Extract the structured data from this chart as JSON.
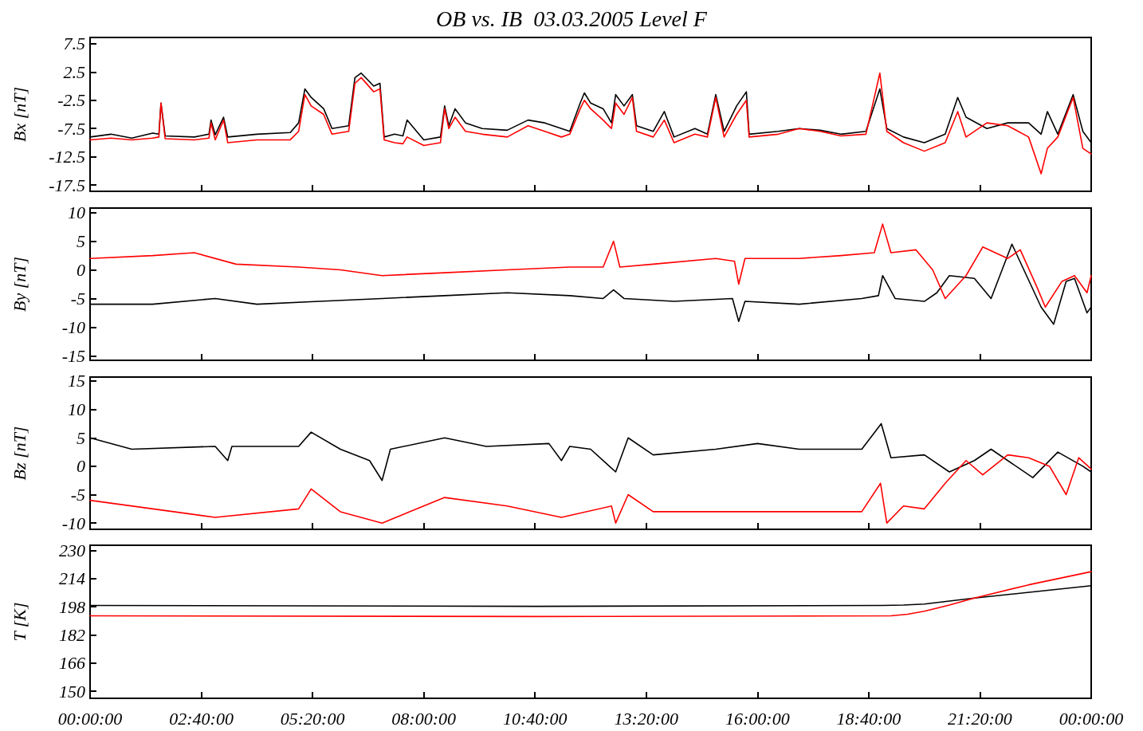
{
  "chart_data": [
    {
      "type": "line",
      "title": "OB vs. IB  03.03.2005 Level F",
      "ylabel": "Bx [nT]",
      "xlim": [
        "2005-03-03T00:00",
        "2005-03-04T00:00"
      ],
      "xticks": [
        {
          "value": "2005-03-03T00:00",
          "label": null
        },
        {
          "value": "2005-03-03T02:40",
          "label": null
        },
        {
          "value": "2005-03-03T05:20",
          "label": null
        },
        {
          "value": "2005-03-03T08:00",
          "label": null
        },
        {
          "value": "2005-03-03T10:40",
          "label": null
        },
        {
          "value": "2005-03-03T13:20",
          "label": null
        },
        {
          "value": "2005-03-03T16:00",
          "label": null
        },
        {
          "value": "2005-03-03T18:40",
          "label": null
        },
        {
          "value": "2005-03-03T21:20",
          "label": null
        },
        {
          "value": "2005-03-04T00:00",
          "label": null
        }
      ],
      "ylim": [
        -18.6,
        8.6
      ],
      "yticks": [
        -17.5,
        -12.5,
        -7.5,
        -2.5,
        2.5,
        7.5
      ],
      "tick_labels": "y",
      "grid": false,
      "marker": "none",
      "line_style": "solid",
      "x": [
        "2005-03-03T00:00",
        "2005-03-03T00:30",
        "2005-03-03T01:00",
        "2005-03-03T01:30",
        "2005-03-03T01:39",
        "2005-03-03T01:42",
        "2005-03-03T01:48",
        "2005-03-03T02:30",
        "2005-03-03T02:51",
        "2005-03-03T02:54",
        "2005-03-03T03:00",
        "2005-03-03T03:12",
        "2005-03-03T03:18",
        "2005-03-03T04:00",
        "2005-03-03T04:48",
        "2005-03-03T05:00",
        "2005-03-03T05:09",
        "2005-03-03T05:18",
        "2005-03-03T05:36",
        "2005-03-03T05:48",
        "2005-03-03T06:12",
        "2005-03-03T06:21",
        "2005-03-03T06:30",
        "2005-03-03T06:48",
        "2005-03-03T06:57",
        "2005-03-03T07:03",
        "2005-03-03T07:18",
        "2005-03-03T07:30",
        "2005-03-03T07:36",
        "2005-03-03T08:00",
        "2005-03-03T08:24",
        "2005-03-03T08:30",
        "2005-03-03T08:36",
        "2005-03-03T08:45",
        "2005-03-03T09:00",
        "2005-03-03T09:24",
        "2005-03-03T10:00",
        "2005-03-03T10:30",
        "2005-03-03T10:54",
        "2005-03-03T11:18",
        "2005-03-03T11:30",
        "2005-03-03T11:45",
        "2005-03-03T11:51",
        "2005-03-03T12:00",
        "2005-03-03T12:18",
        "2005-03-03T12:30",
        "2005-03-03T12:36",
        "2005-03-03T12:48",
        "2005-03-03T13:00",
        "2005-03-03T13:06",
        "2005-03-03T13:30",
        "2005-03-03T13:46",
        "2005-03-03T14:00",
        "2005-03-03T14:30",
        "2005-03-03T14:48",
        "2005-03-03T15:00",
        "2005-03-03T15:12",
        "2005-03-03T15:30",
        "2005-03-03T15:44",
        "2005-03-03T15:48",
        "2005-03-03T16:30",
        "2005-03-03T17:00",
        "2005-03-03T17:30",
        "2005-03-03T18:00",
        "2005-03-03T18:36",
        "2005-03-03T18:56",
        "2005-03-03T19:06",
        "2005-03-03T19:30",
        "2005-03-03T20:00",
        "2005-03-03T20:30",
        "2005-03-03T20:48",
        "2005-03-03T21:00",
        "2005-03-03T21:30",
        "2005-03-03T22:00",
        "2005-03-03T22:30",
        "2005-03-03T22:48",
        "2005-03-03T22:57",
        "2005-03-03T23:12",
        "2005-03-03T23:34",
        "2005-03-03T23:48",
        "2005-03-04T00:00"
      ],
      "series": [
        {
          "color": "#000000",
          "values": [
            -9,
            -8.5,
            -9.2,
            -8.3,
            -8.5,
            -3,
            -8.8,
            -9,
            -8.5,
            -6,
            -8.6,
            -5.5,
            -9,
            -8.5,
            -8.2,
            -6.5,
            -0.5,
            -2,
            -4,
            -7.5,
            -7,
            1.5,
            2.3,
            0,
            0.5,
            -9,
            -8.5,
            -8.8,
            -6,
            -9.5,
            -9,
            -3.5,
            -7,
            -4,
            -6.5,
            -7.5,
            -7.8,
            -6,
            -6.5,
            -7.5,
            -8,
            -3,
            -1.2,
            -3,
            -4,
            -6.5,
            -1.5,
            -3.5,
            -1.5,
            -7,
            -8,
            -4.5,
            -9,
            -7.5,
            -8.5,
            -1.5,
            -8,
            -3.5,
            -1,
            -8.5,
            -8,
            -7.5,
            -7.8,
            -8.5,
            -8,
            -0.5,
            -7.5,
            -9,
            -10,
            -8.5,
            -2,
            -5.5,
            -7.5,
            -6.5,
            -6.5,
            -8.5,
            -4.5,
            -8.5,
            -1.5,
            -8,
            -10
          ]
        },
        {
          "color": "#ff0000",
          "values": [
            -9.5,
            -9.2,
            -9.5,
            -9.2,
            -9,
            -3,
            -9.3,
            -9.5,
            -9.2,
            -6.5,
            -9.5,
            -6,
            -10,
            -9.5,
            -9.5,
            -8,
            -1.5,
            -3.5,
            -5,
            -8.5,
            -8,
            0.5,
            1.5,
            -1,
            -0.5,
            -9.5,
            -10,
            -10.2,
            -9,
            -10.5,
            -10,
            -4,
            -7.5,
            -5.5,
            -8,
            -8.5,
            -9,
            -7,
            -8,
            -9,
            -8.5,
            -4,
            -2.5,
            -4,
            -6,
            -7.5,
            -3,
            -5,
            -2,
            -8,
            -9,
            -6,
            -10,
            -8.5,
            -9,
            -2,
            -9,
            -5,
            -2.5,
            -9,
            -8.5,
            -7.5,
            -8,
            -8.8,
            -8.5,
            2.3,
            -8,
            -10,
            -11.5,
            -10,
            -4.5,
            -9,
            -6.5,
            -7,
            -9,
            -15.5,
            -11,
            -9,
            -2,
            -11,
            -12
          ]
        }
      ]
    },
    {
      "type": "line",
      "ylabel": "By [nT]",
      "xlim": [
        "2005-03-03T00:00",
        "2005-03-04T00:00"
      ],
      "xticks": [
        {
          "value": "2005-03-03T00:00",
          "label": null
        },
        {
          "value": "2005-03-03T02:40",
          "label": null
        },
        {
          "value": "2005-03-03T05:20",
          "label": null
        },
        {
          "value": "2005-03-03T08:00",
          "label": null
        },
        {
          "value": "2005-03-03T10:40",
          "label": null
        },
        {
          "value": "2005-03-03T13:20",
          "label": null
        },
        {
          "value": "2005-03-03T16:00",
          "label": null
        },
        {
          "value": "2005-03-03T18:40",
          "label": null
        },
        {
          "value": "2005-03-03T21:20",
          "label": null
        },
        {
          "value": "2005-03-04T00:00",
          "label": null
        }
      ],
      "ylim": [
        -15.8,
        10.8
      ],
      "yticks": [
        -15,
        -10,
        -5,
        0,
        5,
        10
      ],
      "tick_labels": "y",
      "grid": false,
      "marker": "none",
      "line_style": "solid",
      "series": [
        {
          "color": "#000000",
          "x": [
            "2005-03-03T00:00",
            "2005-03-03T01:30",
            "2005-03-03T03:00",
            "2005-03-03T04:00",
            "2005-03-03T05:30",
            "2005-03-03T07:00",
            "2005-03-03T08:30",
            "2005-03-03T10:00",
            "2005-03-03T11:30",
            "2005-03-03T12:18",
            "2005-03-03T12:33",
            "2005-03-03T12:48",
            "2005-03-03T14:00",
            "2005-03-03T15:24",
            "2005-03-03T15:33",
            "2005-03-03T15:42",
            "2005-03-03T17:00",
            "2005-03-03T18:30",
            "2005-03-03T18:54",
            "2005-03-03T19:00",
            "2005-03-03T19:18",
            "2005-03-03T20:00",
            "2005-03-03T20:18",
            "2005-03-03T20:36",
            "2005-03-03T21:12",
            "2005-03-03T21:36",
            "2005-03-03T22:06",
            "2005-03-03T22:48",
            "2005-03-03T23:06",
            "2005-03-03T23:24",
            "2005-03-03T23:36",
            "2005-03-03T23:54",
            "2005-03-04T00:00"
          ],
          "values": [
            -6,
            -6,
            -5,
            -6,
            -5.5,
            -5,
            -4.5,
            -4,
            -4.5,
            -5,
            -3.5,
            -5,
            -5.5,
            -5,
            -9,
            -5.5,
            -6,
            -5,
            -4.5,
            -1,
            -5,
            -5.5,
            -4,
            -1,
            -1.5,
            -5,
            4.5,
            -6.5,
            -9.5,
            -2,
            -1.5,
            -7.5,
            -6.5
          ]
        },
        {
          "color": "#ff0000",
          "x": [
            "2005-03-03T00:00",
            "2005-03-03T01:30",
            "2005-03-03T02:30",
            "2005-03-03T03:30",
            "2005-03-03T05:00",
            "2005-03-03T06:00",
            "2005-03-03T07:00",
            "2005-03-03T08:30",
            "2005-03-03T10:00",
            "2005-03-03T11:30",
            "2005-03-03T12:18",
            "2005-03-03T12:33",
            "2005-03-03T12:42",
            "2005-03-03T13:30",
            "2005-03-03T15:00",
            "2005-03-03T15:27",
            "2005-03-03T15:33",
            "2005-03-03T15:42",
            "2005-03-03T17:00",
            "2005-03-03T18:00",
            "2005-03-03T18:48",
            "2005-03-03T19:00",
            "2005-03-03T19:12",
            "2005-03-03T19:48",
            "2005-03-03T20:12",
            "2005-03-03T20:30",
            "2005-03-03T21:00",
            "2005-03-03T21:24",
            "2005-03-03T22:00",
            "2005-03-03T22:18",
            "2005-03-03T22:42",
            "2005-03-03T22:54",
            "2005-03-03T23:18",
            "2005-03-03T23:36",
            "2005-03-03T23:54",
            "2005-03-04T00:00"
          ],
          "values": [
            2,
            2.5,
            3,
            1,
            0.5,
            0,
            -1,
            -0.5,
            0,
            0.5,
            0.5,
            5,
            0.5,
            1,
            2,
            1.5,
            -2.5,
            2,
            2,
            2.5,
            3,
            8,
            3,
            3.5,
            0,
            -5,
            -1,
            4,
            2,
            3.5,
            -3,
            -6.5,
            -2,
            -1,
            -4,
            -1
          ]
        }
      ]
    },
    {
      "type": "line",
      "ylabel": "Bz [nT]",
      "xlim": [
        "2005-03-03T00:00",
        "2005-03-04T00:00"
      ],
      "xticks": [
        {
          "value": "2005-03-03T00:00",
          "label": null
        },
        {
          "value": "2005-03-03T02:40",
          "label": null
        },
        {
          "value": "2005-03-03T05:20",
          "label": null
        },
        {
          "value": "2005-03-03T08:00",
          "label": null
        },
        {
          "value": "2005-03-03T10:40",
          "label": null
        },
        {
          "value": "2005-03-03T13:20",
          "label": null
        },
        {
          "value": "2005-03-03T16:00",
          "label": null
        },
        {
          "value": "2005-03-03T18:40",
          "label": null
        },
        {
          "value": "2005-03-03T21:20",
          "label": null
        },
        {
          "value": "2005-03-04T00:00",
          "label": null
        }
      ],
      "ylim": [
        -11.1,
        15.7
      ],
      "yticks": [
        -10,
        -5,
        0,
        5,
        10,
        15
      ],
      "tick_labels": "y",
      "grid": false,
      "marker": "none",
      "line_style": "solid",
      "series": [
        {
          "color": "#000000",
          "x": [
            "2005-03-03T00:00",
            "2005-03-03T01:00",
            "2005-03-03T03:00",
            "2005-03-03T03:18",
            "2005-03-03T03:24",
            "2005-03-03T05:00",
            "2005-03-03T05:18",
            "2005-03-03T06:00",
            "2005-03-03T06:42",
            "2005-03-03T07:00",
            "2005-03-03T07:12",
            "2005-03-03T08:30",
            "2005-03-03T09:30",
            "2005-03-03T11:00",
            "2005-03-03T11:18",
            "2005-03-03T11:30",
            "2005-03-03T12:00",
            "2005-03-03T12:36",
            "2005-03-03T12:54",
            "2005-03-03T13:30",
            "2005-03-03T15:00",
            "2005-03-03T16:00",
            "2005-03-03T17:00",
            "2005-03-03T18:30",
            "2005-03-03T18:58",
            "2005-03-03T19:12",
            "2005-03-03T20:00",
            "2005-03-03T20:36",
            "2005-03-03T21:12",
            "2005-03-03T21:36",
            "2005-03-03T22:36",
            "2005-03-03T23:12",
            "2005-03-03T23:48",
            "2005-03-04T00:00"
          ],
          "values": [
            5,
            3,
            3.5,
            1,
            3.5,
            3.5,
            6,
            3,
            1,
            -2.5,
            3,
            5,
            3.5,
            4,
            1,
            3.5,
            3,
            -1,
            5,
            2,
            3,
            4,
            3,
            3,
            7.5,
            1.5,
            2,
            -1,
            1,
            3,
            -2,
            2.5,
            0,
            -1
          ]
        },
        {
          "color": "#ff0000",
          "x": [
            "2005-03-03T00:00",
            "2005-03-03T02:00",
            "2005-03-03T03:00",
            "2005-03-03T05:00",
            "2005-03-03T05:18",
            "2005-03-03T06:00",
            "2005-03-03T07:00",
            "2005-03-03T08:30",
            "2005-03-03T10:00",
            "2005-03-03T11:18",
            "2005-03-03T12:30",
            "2005-03-03T12:36",
            "2005-03-03T12:54",
            "2005-03-03T13:30",
            "2005-03-03T16:00",
            "2005-03-03T17:00",
            "2005-03-03T18:30",
            "2005-03-03T18:57",
            "2005-03-03T19:06",
            "2005-03-03T19:30",
            "2005-03-03T20:00",
            "2005-03-03T20:30",
            "2005-03-03T21:00",
            "2005-03-03T21:24",
            "2005-03-03T22:00",
            "2005-03-03T22:30",
            "2005-03-03T23:00",
            "2005-03-03T23:24",
            "2005-03-03T23:42",
            "2005-03-04T00:00"
          ],
          "values": [
            -6,
            -8,
            -9,
            -7.5,
            -4,
            -8,
            -10,
            -5.5,
            -7,
            -9,
            -7,
            -10,
            -5,
            -8,
            -8,
            -8,
            -8,
            -3,
            -10,
            -7,
            -7.5,
            -3,
            1,
            -1.5,
            2,
            1.5,
            0,
            -5,
            1.5,
            -0.5
          ]
        }
      ]
    },
    {
      "type": "line",
      "ylabel": "T [K]",
      "xlim": [
        "2005-03-03T00:00",
        "2005-03-04T00:00"
      ],
      "xticks": [
        {
          "value": "2005-03-03T00:00",
          "label": "00:00:00"
        },
        {
          "value": "2005-03-03T02:40",
          "label": "02:40:00"
        },
        {
          "value": "2005-03-03T05:20",
          "label": "05:20:00"
        },
        {
          "value": "2005-03-03T08:00",
          "label": "08:00:00"
        },
        {
          "value": "2005-03-03T10:40",
          "label": "10:40:00"
        },
        {
          "value": "2005-03-03T13:20",
          "label": "13:20:00"
        },
        {
          "value": "2005-03-03T16:00",
          "label": "16:00:00"
        },
        {
          "value": "2005-03-03T18:40",
          "label": "18:40:00"
        },
        {
          "value": "2005-03-03T21:20",
          "label": "21:20:00"
        },
        {
          "value": "2005-03-04T00:00",
          "label": "00:00:00"
        }
      ],
      "ylim": [
        146,
        233
      ],
      "yticks": [
        150,
        166,
        182,
        198,
        214,
        230
      ],
      "grid": false,
      "marker": "none",
      "line_style": "solid",
      "series": [
        {
          "color": "#000000",
          "x": [
            "2005-03-03T00:00",
            "2005-03-03T10:42",
            "2005-03-03T19:00",
            "2005-03-03T19:30",
            "2005-03-03T20:00",
            "2005-03-03T21:12",
            "2005-03-04T00:00"
          ],
          "values": [
            198.8,
            198.3,
            198.8,
            199,
            199.6,
            203,
            210
          ]
        },
        {
          "color": "#ff0000",
          "x": [
            "2005-03-03T00:00",
            "2005-03-03T10:42",
            "2005-03-03T19:12",
            "2005-03-03T19:36",
            "2005-03-03T20:00",
            "2005-03-03T20:36",
            "2005-03-03T21:12",
            "2005-03-03T22:30",
            "2005-03-04T00:00"
          ],
          "values": [
            192.9,
            192.5,
            192.9,
            193.8,
            195.5,
            199,
            203,
            210.5,
            218
          ]
        }
      ]
    }
  ]
}
